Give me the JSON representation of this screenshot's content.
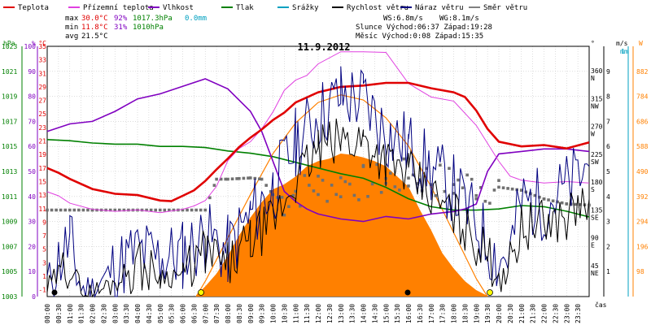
{
  "chart_data": {
    "type": "line",
    "title": "11.9.2012",
    "legend": [
      {
        "name": "Teplota",
        "color": "#e00000"
      },
      {
        "name": "Přízemní teplota",
        "color": "#e040e0"
      },
      {
        "name": "Vlhkost",
        "color": "#8000c0"
      },
      {
        "name": "Tlak",
        "color": "#008000"
      },
      {
        "name": "Srážky",
        "color": "#00a0c0"
      },
      {
        "name": "Rychlost větru",
        "color": "#000000"
      },
      {
        "name": "Náraz větru",
        "color": "#000080"
      },
      {
        "name": "Směr větru",
        "color": "#808080"
      }
    ],
    "stats": {
      "max": {
        "label": "max",
        "temp": "30.0°C",
        "hum": "92%",
        "pres": "1017.3hPa",
        "rain": "0.0mm"
      },
      "min": {
        "label": "min",
        "temp": "11.8°C",
        "hum": "31%",
        "pres": "1010hPa"
      },
      "avg": {
        "label": "avg",
        "temp": "21.5°C"
      },
      "ws": "WS:6.8m/s",
      "wg": "WG:8.1m/s",
      "sun": "Slunce Východ:06:37  Západ:19:28",
      "moon": "Měsíc  Východ:0:08  Západ:15:35"
    },
    "axes": {
      "hpa": {
        "label": "hPa",
        "color": "#008000",
        "ticks": [
          "1003",
          "1005",
          "1007",
          "1009",
          "1011",
          "1013",
          "1015",
          "1017",
          "1019",
          "1021",
          "1023"
        ]
      },
      "pct": {
        "label": "%",
        "color": "#8000c0",
        "ticks": [
          "0",
          "10",
          "20",
          "30",
          "40",
          "50",
          "60",
          "70",
          "80",
          "90",
          "100"
        ]
      },
      "temp": {
        "label": "°C",
        "color": "#e00000",
        "ticks": [
          "-1",
          "1",
          "3",
          "5",
          "7",
          "9",
          "11",
          "13",
          "15",
          "17",
          "19",
          "21",
          "23",
          "25",
          "27",
          "29",
          "31",
          "33",
          "35"
        ]
      },
      "dir": {
        "label": "°",
        "color": "#000000",
        "ticks": [
          {
            "deg": "45",
            "name": "NE"
          },
          {
            "deg": "90",
            "name": "E"
          },
          {
            "deg": "135",
            "name": "SE"
          },
          {
            "deg": "180",
            "name": "S"
          },
          {
            "deg": "225",
            "name": "SW"
          },
          {
            "deg": "270",
            "name": "W"
          },
          {
            "deg": "315",
            "name": "NW"
          },
          {
            "deg": "360",
            "name": "N"
          }
        ]
      },
      "ms": {
        "label": "m/s",
        "color": "#000000",
        "ticks": [
          "1",
          "2",
          "3",
          "4",
          "5",
          "6",
          "7",
          "8",
          "9"
        ]
      },
      "mm": {
        "label": "mm",
        "color": "#00a0c0",
        "ticks": [
          "1"
        ]
      },
      "w": {
        "label": "W",
        "color": "#ff8000",
        "ticks": [
          "98",
          "196",
          "294",
          "392",
          "490",
          "588",
          "686",
          "784",
          "882"
        ]
      },
      "time": {
        "label": "čas",
        "ticks": [
          "00:00",
          "00:30",
          "01:00",
          "01:30",
          "02:00",
          "02:30",
          "03:00",
          "03:30",
          "04:00",
          "04:30",
          "05:00",
          "05:30",
          "06:00",
          "06:30",
          "07:00",
          "07:30",
          "08:00",
          "08:30",
          "09:00",
          "09:30",
          "10:00",
          "10:30",
          "11:00",
          "11:30",
          "12:00",
          "12:30",
          "13:00",
          "13:30",
          "14:00",
          "14:30",
          "15:00",
          "15:30",
          "16:00",
          "16:30",
          "17:00",
          "17:30",
          "18:00",
          "18:30",
          "19:00",
          "19:30",
          "20:00",
          "20:30",
          "21:00",
          "21:30",
          "22:00",
          "22:30",
          "23:00",
          "23:30"
        ]
      }
    },
    "series": {
      "temperature": {
        "x_hours": [
          0,
          0.5,
          1,
          2,
          3,
          4,
          5,
          5.5,
          6,
          6.5,
          7,
          7.5,
          8,
          8.5,
          9,
          9.5,
          10,
          10.5,
          11,
          12,
          13,
          14,
          15,
          16,
          17,
          18,
          18.5,
          19,
          19.5,
          20,
          21,
          22,
          23,
          24
        ],
        "y": [
          17,
          16.3,
          15.4,
          13.9,
          13.2,
          13.0,
          12.2,
          12.1,
          12.9,
          13.7,
          15.1,
          16.8,
          18.4,
          20.1,
          21.5,
          22.7,
          24.1,
          25.2,
          26.7,
          28.2,
          29.0,
          29.2,
          29.6,
          29.6,
          28.8,
          28.2,
          27.5,
          25.5,
          22.8,
          20.9,
          20.2,
          20.4,
          19.9,
          20.8
        ]
      },
      "ground_temperature": {
        "x_hours": [
          0,
          0.5,
          1,
          2,
          3,
          4,
          5,
          6,
          6.5,
          7,
          7.5,
          8,
          8.5,
          9,
          9.5,
          10,
          10.5,
          11,
          11.5,
          12,
          13,
          14,
          15,
          16,
          17,
          18,
          19,
          20,
          20.5,
          21,
          22,
          23,
          24
        ],
        "y": [
          13.5,
          12.9,
          11.8,
          10.9,
          10.6,
          10.8,
          10.4,
          10.9,
          11.4,
          12.2,
          14.3,
          18.1,
          19.9,
          20.9,
          22.8,
          25.3,
          28.5,
          30.0,
          30.7,
          32.4,
          34.2,
          34.2,
          34.1,
          29.5,
          27.5,
          26.9,
          23.3,
          18.0,
          15.8,
          15.2,
          14.8,
          15.0,
          14.8
        ]
      },
      "humidity": {
        "x_hours": [
          0,
          1,
          2,
          3,
          4,
          5,
          6,
          7,
          8,
          9,
          9.5,
          10,
          10.5,
          11,
          11.5,
          12,
          13,
          14,
          15,
          16,
          17,
          18,
          18.5,
          19,
          19.5,
          20,
          21,
          22,
          23,
          24
        ],
        "y": [
          66,
          69,
          70,
          74,
          79,
          81,
          84,
          87,
          83,
          74,
          66,
          54,
          42,
          38,
          35,
          33,
          31,
          30,
          32,
          31,
          33,
          34,
          35,
          37,
          50,
          57,
          58,
          59,
          59,
          58
        ]
      },
      "pressure": {
        "x_hours": [
          0,
          1,
          2,
          3,
          4,
          5,
          6,
          7,
          8,
          9,
          10,
          11,
          12,
          13,
          14,
          15,
          16,
          17,
          18,
          19,
          20,
          21,
          22,
          23,
          24
        ],
        "y": [
          1016.8,
          1016.7,
          1016.5,
          1016.4,
          1016.4,
          1016.2,
          1016.2,
          1016.1,
          1015.8,
          1015.6,
          1015.3,
          1014.8,
          1014.3,
          1013.8,
          1013.4,
          1012.6,
          1011.6,
          1010.9,
          1010.6,
          1010.6,
          1010.7,
          1011.0,
          1010.9,
          1010.5,
          1010.0
        ]
      },
      "solar_radiation": {
        "x_hours": [
          6.6,
          7,
          7.5,
          8,
          8.5,
          9,
          9.5,
          10,
          10.5,
          11,
          11.5,
          12,
          12.5,
          13,
          13.5,
          14,
          14.5,
          15,
          15.5,
          16,
          16.5,
          17,
          17.5,
          18,
          18.5,
          19,
          19.5
        ],
        "y": [
          5,
          40,
          90,
          160,
          240,
          310,
          370,
          420,
          440,
          470,
          510,
          530,
          540,
          560,
          555,
          545,
          530,
          510,
          470,
          430,
          340,
          260,
          170,
          110,
          60,
          25,
          3
        ]
      },
      "solar_theoretical": {
        "x_hours": [
          6.6,
          7,
          8,
          9,
          10,
          11,
          12,
          13,
          14,
          15,
          16,
          17,
          18,
          19,
          19.5
        ],
        "y": [
          0,
          60,
          230,
          400,
          560,
          680,
          760,
          790,
          770,
          700,
          590,
          430,
          250,
          70,
          0
        ]
      },
      "wind_speed": {
        "x_hours": [
          0,
          1,
          1.5,
          2,
          3,
          4,
          5,
          6,
          7,
          8,
          9,
          10,
          11,
          12,
          13,
          14,
          15,
          16,
          17,
          18,
          19,
          20,
          20.5,
          21,
          22,
          23,
          24
        ],
        "y": [
          0.3,
          1.4,
          0.2,
          0.1,
          0.6,
          1.3,
          0.8,
          0.9,
          1.8,
          1.2,
          2.2,
          3.0,
          4.6,
          5.9,
          6.2,
          6.3,
          5.4,
          4.9,
          4.0,
          3.3,
          2.2,
          1.0,
          1.3,
          2.8,
          2.9,
          3.2,
          3.9
        ]
      },
      "wind_gust": {
        "x_hours": [
          0,
          1,
          1.5,
          2,
          3,
          4,
          5,
          6,
          7,
          8,
          9,
          10,
          11,
          12,
          13,
          14,
          15,
          16,
          17,
          18,
          19,
          20,
          20.5,
          21,
          22,
          23,
          24
        ],
        "y": [
          0.6,
          2.2,
          0.3,
          0.3,
          1.1,
          1.8,
          1.5,
          1.7,
          2.4,
          1.8,
          3.2,
          4.3,
          6.1,
          7.2,
          8.0,
          7.9,
          6.5,
          6.0,
          5.0,
          4.3,
          2.9,
          1.4,
          1.8,
          3.8,
          3.7,
          4.3,
          5.2
        ]
      },
      "wind_direction": {
        "x_hours": [
          0,
          1,
          2,
          3,
          4,
          5,
          6,
          7,
          7.5,
          8,
          8.5,
          9,
          9.5,
          10,
          10.5,
          11,
          12,
          13,
          14,
          15,
          16,
          17,
          18,
          19,
          20,
          21,
          22,
          23,
          24
        ],
        "y": [
          140,
          140,
          140,
          140,
          140,
          140,
          140,
          140,
          190,
          190,
          191,
          192,
          190,
          165,
          155,
          170,
          178,
          182,
          184,
          188,
          195,
          190,
          183,
          180,
          177,
          172,
          158,
          150,
          148
        ]
      }
    }
  }
}
